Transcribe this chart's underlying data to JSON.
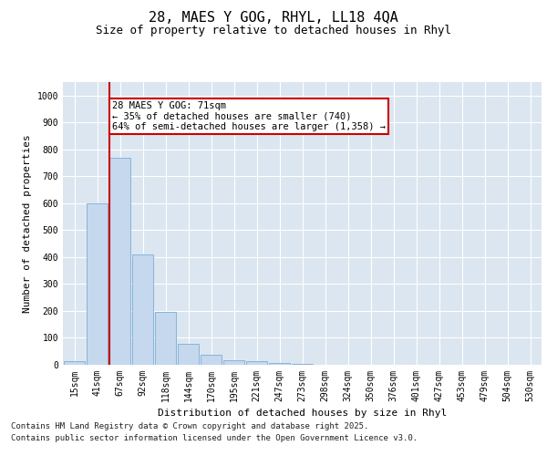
{
  "title": "28, MAES Y GOG, RHYL, LL18 4QA",
  "subtitle": "Size of property relative to detached houses in Rhyl",
  "xlabel": "Distribution of detached houses by size in Rhyl",
  "ylabel": "Number of detached properties",
  "bar_color": "#c5d8ee",
  "bar_edge_color": "#7aadd4",
  "categories": [
    "15sqm",
    "41sqm",
    "67sqm",
    "92sqm",
    "118sqm",
    "144sqm",
    "170sqm",
    "195sqm",
    "221sqm",
    "247sqm",
    "273sqm",
    "298sqm",
    "324sqm",
    "350sqm",
    "376sqm",
    "401sqm",
    "427sqm",
    "453sqm",
    "479sqm",
    "504sqm",
    "530sqm"
  ],
  "values": [
    15,
    600,
    770,
    410,
    195,
    78,
    37,
    17,
    15,
    8,
    5,
    0,
    0,
    0,
    0,
    0,
    0,
    0,
    0,
    0,
    0
  ],
  "vline_x_index": 2,
  "vline_color": "#cc0000",
  "annotation_text": "28 MAES Y GOG: 71sqm\n← 35% of detached houses are smaller (740)\n64% of semi-detached houses are larger (1,358) →",
  "annotation_box_facecolor": "#ffffff",
  "annotation_box_edgecolor": "#cc0000",
  "ylim": [
    0,
    1050
  ],
  "yticks": [
    0,
    100,
    200,
    300,
    400,
    500,
    600,
    700,
    800,
    900,
    1000
  ],
  "plot_bg_color": "#dce6f0",
  "fig_bg_color": "#ffffff",
  "footer_line1": "Contains HM Land Registry data © Crown copyright and database right 2025.",
  "footer_line2": "Contains public sector information licensed under the Open Government Licence v3.0.",
  "title_fontsize": 11,
  "subtitle_fontsize": 9,
  "footer_fontsize": 6.5,
  "ylabel_fontsize": 8,
  "xlabel_fontsize": 8,
  "tick_fontsize": 7,
  "annotation_fontsize": 7.5
}
